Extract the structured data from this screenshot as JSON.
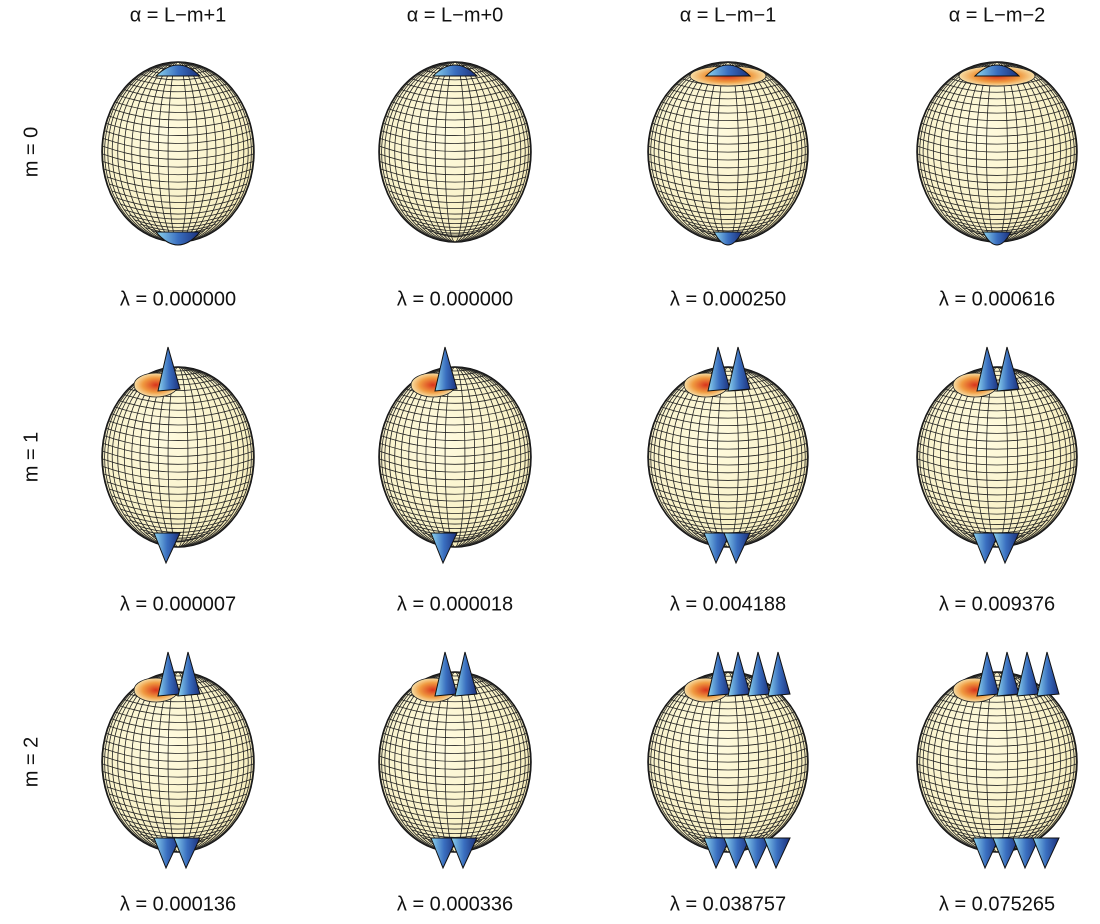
{
  "column_headers": [
    "α = L−m+1",
    "α = L−m+0",
    "α = L−m−1",
    "α = L−m−2"
  ],
  "row_labels": [
    "m = 0",
    "m = 1",
    "m = 2"
  ],
  "eigenvalue_labels": [
    [
      "λ =  0.000000",
      "λ =  0.000000",
      "λ =  0.000250",
      "λ =  0.000616"
    ],
    [
      "λ =  0.000007",
      "λ =  0.000018",
      "λ =  0.004188",
      "λ =  0.009376"
    ],
    [
      "λ =  0.000136",
      "λ =  0.000336",
      "λ =  0.038757",
      "λ =  0.075265"
    ]
  ]
}
